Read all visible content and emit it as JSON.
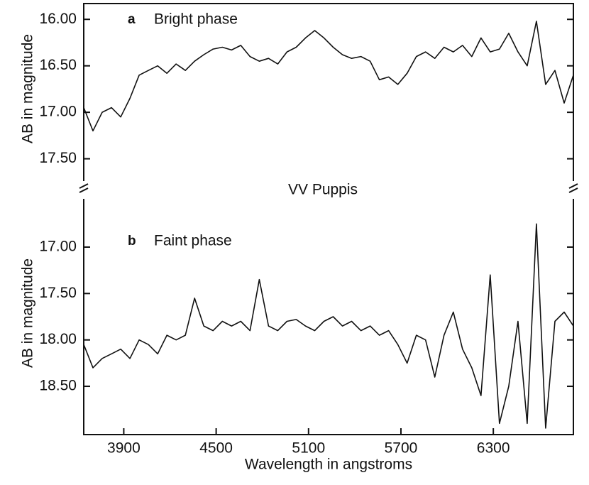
{
  "title": "VV Puppis",
  "chart_data": [
    {
      "type": "line",
      "label": "a",
      "subtitle": "Bright phase",
      "ylabel": "AB in magnitude",
      "x": [
        3640,
        3700,
        3760,
        3820,
        3880,
        3940,
        4000,
        4060,
        4120,
        4180,
        4240,
        4300,
        4360,
        4420,
        4480,
        4540,
        4600,
        4660,
        4720,
        4780,
        4840,
        4900,
        4960,
        5020,
        5080,
        5140,
        5200,
        5260,
        5320,
        5380,
        5440,
        5500,
        5560,
        5620,
        5680,
        5740,
        5800,
        5860,
        5920,
        5980,
        6040,
        6100,
        6160,
        6220,
        6280,
        6340,
        6400,
        6460,
        6520,
        6580,
        6640,
        6700,
        6760,
        6820
      ],
      "values": [
        16.95,
        17.2,
        17.0,
        16.95,
        17.05,
        16.85,
        16.6,
        16.55,
        16.5,
        16.58,
        16.48,
        16.55,
        16.45,
        16.38,
        16.32,
        16.3,
        16.33,
        16.28,
        16.4,
        16.45,
        16.42,
        16.48,
        16.35,
        16.3,
        16.2,
        16.12,
        16.2,
        16.3,
        16.38,
        16.42,
        16.4,
        16.45,
        16.65,
        16.62,
        16.7,
        16.58,
        16.4,
        16.35,
        16.42,
        16.3,
        16.35,
        16.28,
        16.4,
        16.2,
        16.35,
        16.32,
        16.15,
        16.35,
        16.5,
        16.02,
        16.7,
        16.55,
        16.9,
        16.6
      ],
      "color": "#111111",
      "xlim": [
        3640,
        6820
      ],
      "ylim": [
        15.83,
        17.74
      ],
      "yticks": [
        {
          "value": 16,
          "label": "16.00"
        },
        {
          "value": 16.5,
          "label": "16.50"
        },
        {
          "value": 17,
          "label": "17.00"
        },
        {
          "value": 17.5,
          "label": "17.50"
        }
      ]
    },
    {
      "type": "line",
      "label": "b",
      "subtitle": "Faint phase",
      "ylabel": "AB in magnitude",
      "xlabel": "Wavelength in angstroms",
      "x": [
        3640,
        3700,
        3760,
        3820,
        3880,
        3940,
        4000,
        4060,
        4120,
        4180,
        4240,
        4300,
        4360,
        4420,
        4480,
        4540,
        4600,
        4660,
        4720,
        4780,
        4840,
        4900,
        4960,
        5020,
        5080,
        5140,
        5200,
        5260,
        5320,
        5380,
        5440,
        5500,
        5560,
        5620,
        5680,
        5740,
        5800,
        5860,
        5920,
        5980,
        6040,
        6100,
        6160,
        6220,
        6280,
        6340,
        6400,
        6460,
        6520,
        6580,
        6640,
        6700,
        6760,
        6820
      ],
      "values": [
        18.05,
        18.3,
        18.2,
        18.15,
        18.1,
        18.2,
        18.0,
        18.05,
        18.15,
        17.95,
        18.0,
        17.95,
        17.55,
        17.85,
        17.9,
        17.8,
        17.85,
        17.8,
        17.9,
        17.35,
        17.85,
        17.9,
        17.8,
        17.78,
        17.85,
        17.9,
        17.8,
        17.75,
        17.85,
        17.8,
        17.9,
        17.85,
        17.95,
        17.9,
        18.05,
        18.25,
        17.95,
        18.0,
        18.4,
        17.95,
        17.7,
        18.1,
        18.3,
        18.6,
        17.3,
        18.9,
        18.5,
        17.8,
        18.9,
        16.75,
        18.95,
        17.8,
        17.7,
        17.85
      ],
      "color": "#111111",
      "xlim": [
        3640,
        6820
      ],
      "ylim": [
        16.48,
        19.02
      ],
      "xticks": [
        3900,
        4500,
        5100,
        5700,
        6300
      ],
      "yticks": [
        {
          "value": 17,
          "label": "17.00"
        },
        {
          "value": 17.5,
          "label": "17.50"
        },
        {
          "value": 18,
          "label": "18.00"
        },
        {
          "value": 18.5,
          "label": "18.50"
        }
      ]
    }
  ]
}
